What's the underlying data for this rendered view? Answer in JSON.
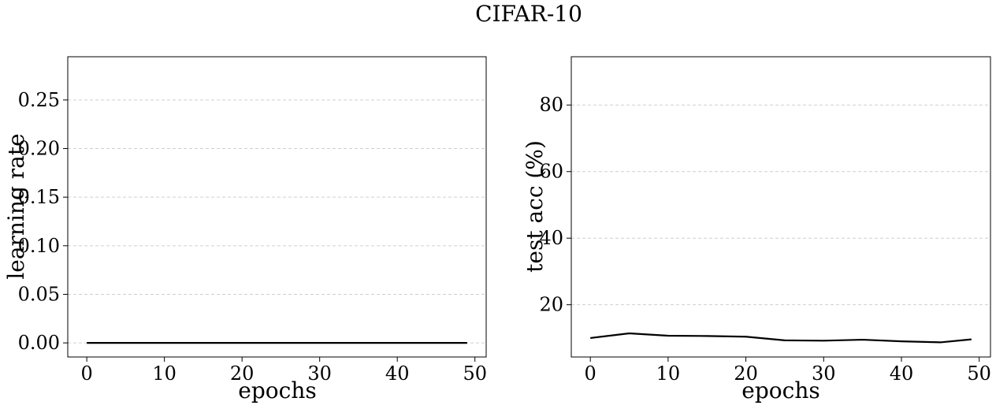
{
  "figure_title": "CIFAR-10",
  "chart_data": [
    {
      "type": "line",
      "title": "",
      "xlabel": "epochs",
      "ylabel": "learning rate",
      "xlim": [
        -2.45,
        51.45
      ],
      "ylim": [
        -0.0145,
        0.2945
      ],
      "xticks": [
        0,
        10,
        20,
        30,
        40,
        50
      ],
      "yticks": [
        0.0,
        0.05,
        0.1,
        0.15,
        0.2,
        0.25
      ],
      "xtick_labels": [
        "0",
        "10",
        "20",
        "30",
        "40",
        "50"
      ],
      "ytick_labels": [
        "0.00",
        "0.05",
        "0.10",
        "0.15",
        "0.20",
        "0.25"
      ],
      "grid": "y-dashed",
      "series": [
        {
          "x": [
            0,
            49
          ],
          "y": [
            0.0,
            0.0
          ],
          "color": "#000000"
        }
      ]
    },
    {
      "type": "line",
      "title": "",
      "xlabel": "epochs",
      "ylabel": "test acc (%)",
      "xlim": [
        -2.45,
        51.45
      ],
      "ylim": [
        4.3,
        94.5
      ],
      "xticks": [
        0,
        10,
        20,
        30,
        40,
        50
      ],
      "yticks": [
        20,
        40,
        60,
        80
      ],
      "xtick_labels": [
        "0",
        "10",
        "20",
        "30",
        "40",
        "50"
      ],
      "ytick_labels": [
        "20",
        "40",
        "60",
        "80"
      ],
      "grid": "y-dashed",
      "series": [
        {
          "x": [
            0,
            5,
            10,
            15,
            20,
            25,
            30,
            35,
            40,
            45,
            49
          ],
          "y": [
            10.0,
            11.4,
            10.7,
            10.6,
            10.4,
            9.3,
            9.2,
            9.5,
            9.0,
            8.7,
            9.6
          ],
          "color": "#000000"
        }
      ]
    }
  ]
}
